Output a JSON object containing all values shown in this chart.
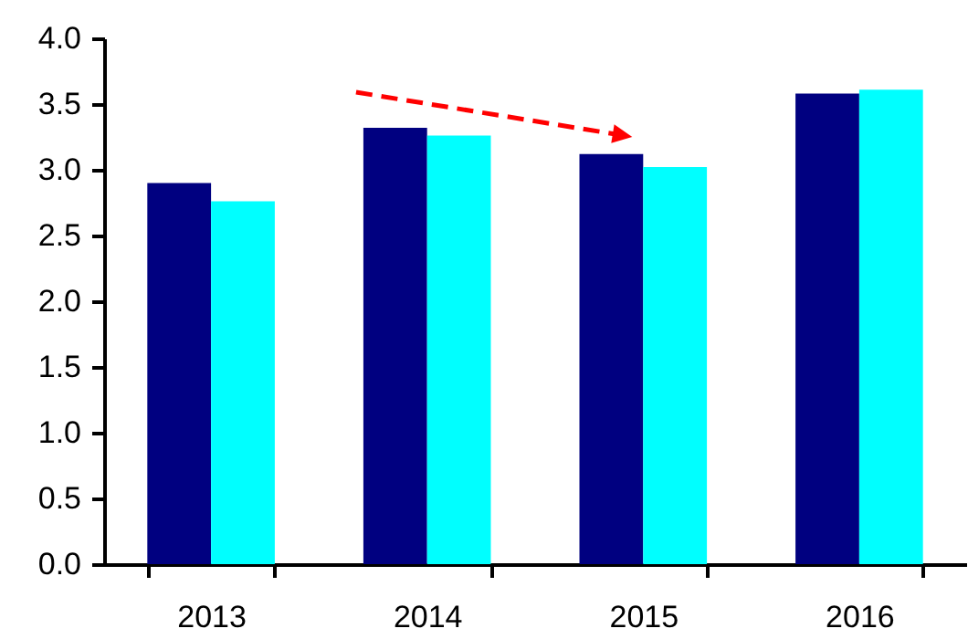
{
  "chart_data": {
    "type": "bar",
    "categories": [
      "2013",
      "2014",
      "2015",
      "2016"
    ],
    "series": [
      {
        "color": "#000080",
        "values": [
          2.9,
          3.32,
          3.12,
          3.58
        ]
      },
      {
        "color": "#00ffff",
        "values": [
          2.76,
          3.26,
          3.02,
          3.61
        ]
      }
    ],
    "ylim": [
      0,
      4
    ],
    "yticks": [
      {
        "value": 0,
        "label": "0.0"
      },
      0.5,
      {
        "value": 1,
        "label": "1.0"
      },
      1.5,
      {
        "value": 2,
        "label": "2.0"
      },
      2.5,
      {
        "value": 3,
        "label": "3.0"
      },
      3.5,
      {
        "value": 4,
        "label": "4.0"
      }
    ],
    "grid": false,
    "legend": false
  }
}
